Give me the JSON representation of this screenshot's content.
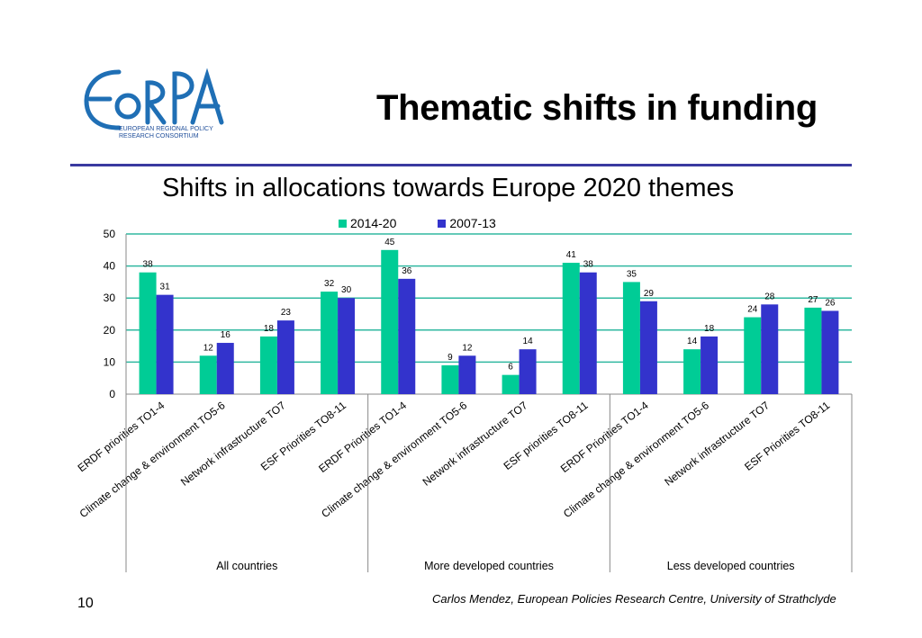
{
  "header": {
    "title": "Thematic shifts in funding",
    "logo_text": "EoRPA",
    "logo_caption_line1": "EUROPEAN REGIONAL POLICY",
    "logo_caption_line2": "RESEARCH CONSORTIUM"
  },
  "footer": {
    "page_number": "10",
    "credit": "Carlos Mendez, European Policies Research Centre, University of Strathclyde"
  },
  "colors": {
    "series_2014": "#00cc96",
    "series_2007": "#3333cc",
    "gridline": "#30b8a0",
    "rule": "#3a3aa0",
    "logo": "#1f6fb5"
  },
  "chart_data": {
    "type": "bar",
    "title": "Shifts in allocations towards Europe 2020 themes",
    "xlabel": "",
    "ylabel": "",
    "ylim": [
      0,
      50
    ],
    "yticks": [
      0,
      10,
      20,
      30,
      40,
      50
    ],
    "grid": true,
    "legend_position": "top-center",
    "categories": [
      "ERDF priorities TO1-4",
      "Climate change & environment TO5-6",
      "Network infrastructure TO7",
      "ESF Priorities TO8-11",
      "ERDF Priorities TO1-4",
      "Climate change & environment TO5-6",
      "Network infrastructure TO7",
      "ESF priorities TO8-11",
      "ERDF Priorities TO1-4",
      "Climate change & environment TO5-6",
      "Network infrastructure TO7",
      "ESF Priorities TO8-11"
    ],
    "groups": [
      {
        "label": "All countries",
        "count": 4
      },
      {
        "label": "More developed countries",
        "count": 4
      },
      {
        "label": "Less developed countries",
        "count": 4
      }
    ],
    "series": [
      {
        "name": "2014-20",
        "values": [
          38,
          12,
          18,
          32,
          45,
          9,
          6,
          41,
          35,
          14,
          24,
          27
        ]
      },
      {
        "name": "2007-13",
        "values": [
          31,
          16,
          23,
          30,
          36,
          12,
          14,
          38,
          29,
          18,
          28,
          26
        ]
      }
    ]
  }
}
